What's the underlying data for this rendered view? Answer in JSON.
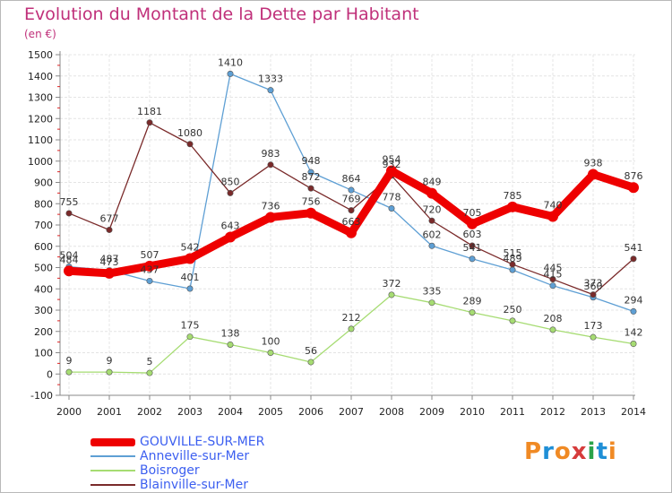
{
  "title": "Evolution du Montant de la Dette par Habitant",
  "subtitle": "(en €)",
  "logo": {
    "text": "Proxiti",
    "colors": [
      "#f08a24",
      "#1f8fd6",
      "#f08a24",
      "#d63c3c",
      "#2aa34a",
      "#1f8fd6",
      "#f08a24"
    ]
  },
  "chart_data": {
    "type": "line",
    "categories": [
      "2000",
      "2001",
      "2002",
      "2003",
      "2004",
      "2005",
      "2006",
      "2007",
      "2008",
      "2009",
      "2010",
      "2011",
      "2012",
      "2013",
      "2014"
    ],
    "ylim": [
      -100,
      1500
    ],
    "yticks": [
      "-100",
      "0",
      "100",
      "200",
      "300",
      "400",
      "500",
      "600",
      "700",
      "800",
      "900",
      "1000",
      "1100",
      "1200",
      "1300",
      "1400",
      "1500"
    ],
    "grid": true,
    "series": [
      {
        "name": "GOUVILLE-SUR-MER",
        "color": "#ee0000",
        "values": [
          484,
          473,
          507,
          542,
          643,
          736,
          756,
          663,
          954,
          849,
          705,
          785,
          740,
          938,
          876
        ],
        "labels": [
          "484",
          "473",
          "507",
          "542",
          "643",
          "736",
          "756",
          "663",
          "954",
          "849",
          "705",
          "785",
          "740",
          "938",
          "876"
        ]
      },
      {
        "name": "Anneville-sur-Mer",
        "color": "#5e9fd4",
        "values": [
          504,
          487,
          437,
          401,
          1410,
          1333,
          948,
          864,
          778,
          602,
          541,
          489,
          415,
          360,
          294
        ],
        "labels": [
          "504",
          "487",
          "437",
          "401",
          "1410",
          "1333",
          "948",
          "864",
          "778",
          "602",
          "541",
          "489",
          "415",
          "360",
          "294"
        ]
      },
      {
        "name": "Boisroger",
        "color": "#a6dc72",
        "values": [
          9,
          9,
          5,
          175,
          138,
          100,
          56,
          212,
          372,
          335,
          289,
          250,
          208,
          173,
          142
        ],
        "labels": [
          "9",
          "9",
          "5",
          "175",
          "138",
          "100",
          "56",
          "212",
          "372",
          "335",
          "289",
          "250",
          "208",
          "173",
          "142"
        ]
      },
      {
        "name": "Blainville-sur-Mer",
        "color": "#7a2a2a",
        "values": [
          755,
          677,
          1181,
          1080,
          850,
          983,
          872,
          769,
          932,
          720,
          603,
          515,
          445,
          373,
          541
        ],
        "labels": [
          "755",
          "677",
          "1181",
          "1080",
          "850",
          "983",
          "872",
          "769",
          "932",
          "720",
          "603",
          "515",
          "445",
          "373",
          "541"
        ]
      }
    ]
  }
}
